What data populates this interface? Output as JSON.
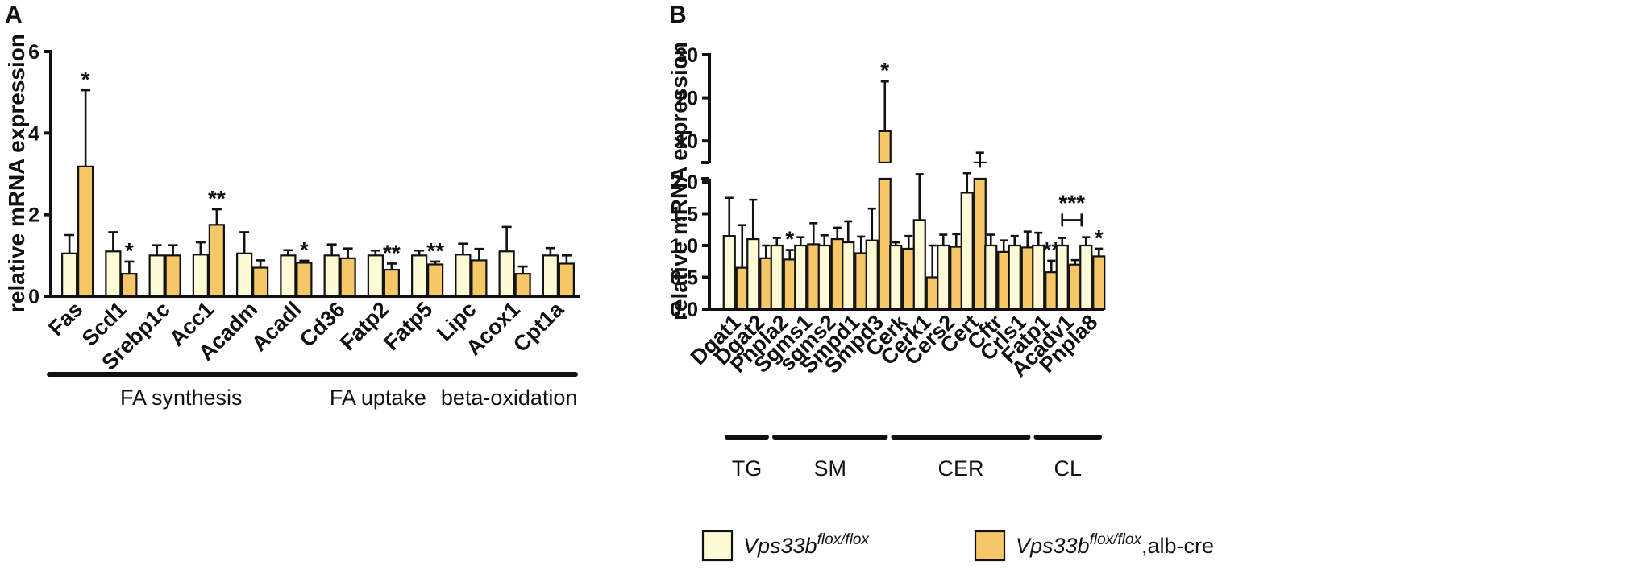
{
  "colors": {
    "control": "#fdfbd6",
    "ko": "#f5c766",
    "ink": "#111111"
  },
  "chart_data": [
    {
      "panel": "A",
      "type": "bar",
      "ylabel": "relative mRNA expression",
      "ylim": [
        0,
        6
      ],
      "yticks": [
        "0",
        "2",
        "4",
        "6"
      ],
      "categories": [
        "Fas",
        "Scd1",
        "Srebp1c",
        "Acc1",
        "Acadm",
        "Acadl",
        "Cd36",
        "Fatp2",
        "Fatp5",
        "Lipc",
        "Acox1",
        "Cpt1a"
      ],
      "series": [
        {
          "name": "Vps33b flox/flox",
          "values": [
            1.05,
            1.1,
            1.0,
            1.02,
            1.05,
            1.0,
            1.0,
            1.0,
            1.0,
            1.02,
            1.1,
            1.0
          ],
          "errors": [
            0.45,
            0.47,
            0.25,
            0.3,
            0.52,
            0.13,
            0.27,
            0.12,
            0.12,
            0.27,
            0.6,
            0.18
          ]
        },
        {
          "name": "Vps33b flox/flox,alb-cre",
          "values": [
            3.18,
            0.55,
            1.0,
            1.75,
            0.7,
            0.82,
            0.93,
            0.65,
            0.78,
            0.88,
            0.55,
            0.8
          ],
          "errors": [
            1.87,
            0.3,
            0.25,
            0.38,
            0.18,
            0.05,
            0.24,
            0.15,
            0.07,
            0.28,
            0.18,
            0.2
          ]
        }
      ],
      "significance": [
        "*",
        "*",
        "",
        "**",
        "",
        "*",
        "",
        "**",
        "**",
        "",
        "",
        ""
      ],
      "groups": [
        {
          "label": "FA synthesis",
          "from": 0,
          "to": 5
        },
        {
          "label": "FA uptake",
          "from": 6,
          "to": 8
        },
        {
          "label": "beta-oxidation",
          "from": 9,
          "to": 11
        }
      ]
    },
    {
      "panel": "B",
      "type": "bar",
      "ylabel": "relative mRNA expression",
      "ylim": [
        0,
        30
      ],
      "axis_break": [
        2.0,
        5.0
      ],
      "lower_ticks": [
        "0.0",
        "0.5",
        "1.0",
        "1.5",
        "2.0"
      ],
      "upper_ticks": [
        "10",
        "20",
        "30"
      ],
      "categories": [
        "Dgat1",
        "Dgat2",
        "Pnpla2",
        "Sgms1",
        "sgms2",
        "Smpd1",
        "Smpd3",
        "Cerk",
        "Cerk1",
        "Cers2",
        "Cert",
        "Cftr",
        "Crls1",
        "Fatp1",
        "Acadv1",
        "Pnpla8"
      ],
      "series": [
        {
          "name": "Vps33b flox/flox",
          "values": [
            1.15,
            1.1,
            1.0,
            1.0,
            1.0,
            1.05,
            1.08,
            1.0,
            1.4,
            1.0,
            1.83,
            1.0,
            1.0,
            1.0,
            1.0,
            1.0
          ],
          "errors": [
            0.6,
            0.62,
            0.12,
            0.13,
            0.16,
            0.33,
            0.5,
            0.05,
            0.9,
            0.17,
            0.7,
            0.17,
            0.15,
            0.2,
            0.12,
            0.13
          ]
        },
        {
          "name": "Vps33b flox/flox,alb-cre",
          "values": [
            0.65,
            0.8,
            0.78,
            1.02,
            1.1,
            0.88,
            12.3,
            0.95,
            0.5,
            0.98,
            3.8,
            0.9,
            0.97,
            0.58,
            0.7,
            0.83
          ],
          "errors": [
            0.67,
            0.2,
            0.15,
            0.33,
            0.18,
            0.26,
            11.5,
            0.2,
            0.5,
            0.2,
            3.5,
            0.18,
            0.25,
            0.18,
            0.07,
            0.12
          ]
        }
      ],
      "significance": [
        "",
        "",
        "*",
        "",
        "",
        "",
        "*",
        "",
        "",
        "",
        "",
        "",
        "",
        "**",
        "***",
        "*"
      ],
      "groups": [
        {
          "label": "TG",
          "from": 0,
          "to": 1
        },
        {
          "label": "SM",
          "from": 2,
          "to": 6
        },
        {
          "label": "CER",
          "from": 7,
          "to": 12
        },
        {
          "label": "CL",
          "from": 13,
          "to": 15
        }
      ]
    }
  ],
  "legend": [
    {
      "name_italic": "Vps33b",
      "sup": "flox/flox",
      "suffix": ""
    },
    {
      "name_italic": "Vps33b",
      "sup": "flox/flox",
      "suffix": ",alb-cre"
    }
  ]
}
